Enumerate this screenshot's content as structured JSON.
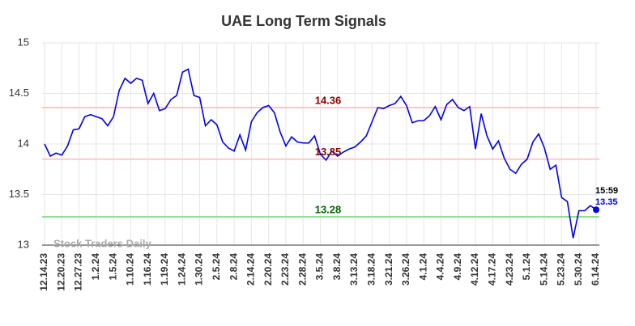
{
  "chart_data": {
    "type": "line",
    "title": "UAE Long Term Signals",
    "categories": [
      "12.14.23",
      null,
      null,
      "12.20.23",
      null,
      null,
      "12.27.23",
      null,
      null,
      "1.2.24",
      null,
      null,
      "1.5.24",
      null,
      null,
      "1.10.24",
      null,
      null,
      "1.16.24",
      null,
      null,
      "1.19.24",
      null,
      null,
      "1.24.24",
      null,
      null,
      "1.30.24",
      null,
      null,
      "2.5.24",
      null,
      null,
      "2.8.24",
      null,
      null,
      "2.14.24",
      null,
      null,
      "2.20.24",
      null,
      null,
      "2.23.24",
      null,
      null,
      "2.28.24",
      null,
      null,
      "3.5.24",
      null,
      null,
      "3.8.24",
      null,
      null,
      "3.13.24",
      null,
      null,
      "3.18.24",
      null,
      null,
      "3.21.24",
      null,
      null,
      "3.26.24",
      null,
      null,
      "4.1.24",
      null,
      null,
      "4.4.24",
      null,
      null,
      "4.9.24",
      null,
      null,
      "4.12.24",
      null,
      null,
      "4.17.24",
      null,
      null,
      "4.23.24",
      null,
      null,
      "5.1.24",
      null,
      null,
      "5.14.24",
      null,
      null,
      "5.23.24",
      null,
      null,
      "5.30.24",
      null,
      null,
      "6.14.24"
    ],
    "series": [
      {
        "name": "UAE",
        "color": "#0000ee",
        "values": [
          14.0,
          13.88,
          13.91,
          13.89,
          13.98,
          14.14,
          14.15,
          14.27,
          14.29,
          14.27,
          14.25,
          14.18,
          14.27,
          14.53,
          14.65,
          14.6,
          14.65,
          14.63,
          14.4,
          14.5,
          14.33,
          14.35,
          14.44,
          14.48,
          14.71,
          14.74,
          14.48,
          14.46,
          14.18,
          14.24,
          14.19,
          14.02,
          13.96,
          13.93,
          14.09,
          13.94,
          14.22,
          14.31,
          14.36,
          14.38,
          14.31,
          14.12,
          13.98,
          14.07,
          14.02,
          14.01,
          14.01,
          14.08,
          13.9,
          13.84,
          13.93,
          13.88,
          13.92,
          13.95,
          13.97,
          14.02,
          14.08,
          14.22,
          14.36,
          14.35,
          14.38,
          14.4,
          14.47,
          14.38,
          14.21,
          14.23,
          14.23,
          14.28,
          14.37,
          14.24,
          14.39,
          14.44,
          14.36,
          14.33,
          14.37,
          13.95,
          14.3,
          14.08,
          13.95,
          14.03,
          13.86,
          13.75,
          13.71,
          13.8,
          13.85,
          14.02,
          14.1,
          13.96,
          13.75,
          13.79,
          13.47,
          13.43,
          13.07,
          13.34,
          13.34,
          13.39,
          13.35
        ]
      }
    ],
    "ylim": [
      13,
      15
    ],
    "yticks": [
      13,
      13.5,
      14,
      14.5,
      15
    ],
    "grid": true,
    "hlines": [
      {
        "value": 14.36,
        "color": "#ffc8c8",
        "label_color": "#8b0000"
      },
      {
        "value": 13.85,
        "color": "#ffc8c8",
        "label_color": "#8b0000"
      },
      {
        "value": 13.28,
        "color": "#90e090",
        "label_color": "#006400"
      }
    ],
    "last_point_time": "15:59",
    "watermark": "Stock Traders Daily"
  }
}
